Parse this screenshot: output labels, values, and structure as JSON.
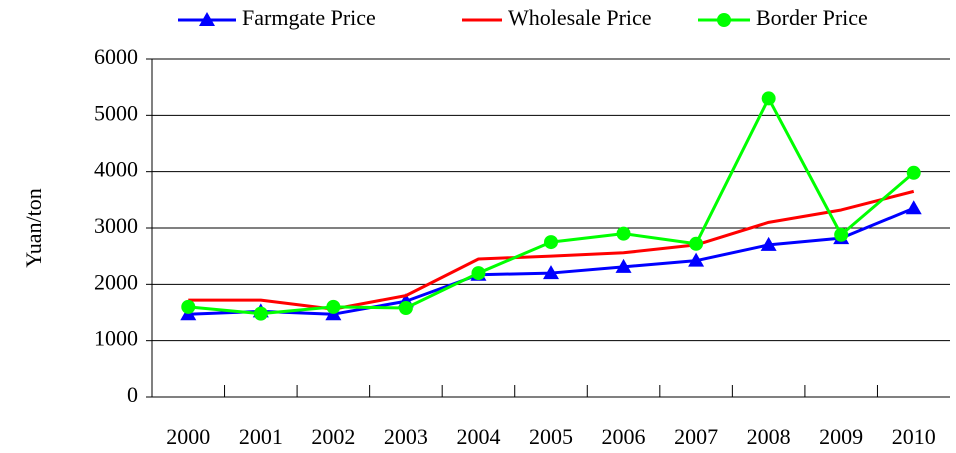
{
  "chart_data": {
    "type": "line",
    "y_label": "Yuan/ton",
    "categories": [
      "2000",
      "2001",
      "2002",
      "2003",
      "2004",
      "2005",
      "2006",
      "2007",
      "2008",
      "2009",
      "2010"
    ],
    "series": [
      {
        "name": "Farmgate Price",
        "color": "#0000ff",
        "marker": "triangle",
        "values": [
          1470,
          1520,
          1470,
          1700,
          2170,
          2200,
          2310,
          2420,
          2700,
          2820,
          3350
        ]
      },
      {
        "name": "Wholesale Price",
        "color": "#ff0000",
        "marker": "none",
        "values": [
          1720,
          1720,
          1560,
          1800,
          2450,
          2500,
          2560,
          2700,
          3100,
          3320,
          3650
        ]
      },
      {
        "name": "Border Price",
        "color": "#00ff00",
        "marker": "circle",
        "values": [
          1600,
          1480,
          1600,
          1580,
          2200,
          2750,
          2900,
          2720,
          5300,
          2880,
          3980
        ]
      }
    ],
    "ylim": [
      0,
      6000
    ],
    "yticks": [
      0,
      1000,
      2000,
      3000,
      4000,
      5000,
      6000
    ],
    "grid": true,
    "legend": "top"
  }
}
